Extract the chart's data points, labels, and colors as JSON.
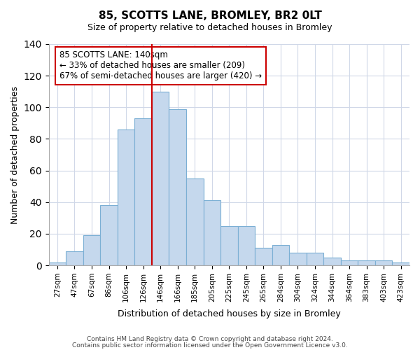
{
  "title": "85, SCOTTS LANE, BROMLEY, BR2 0LT",
  "subtitle": "Size of property relative to detached houses in Bromley",
  "xlabel": "Distribution of detached houses by size in Bromley",
  "ylabel": "Number of detached properties",
  "bar_labels": [
    "27sqm",
    "47sqm",
    "67sqm",
    "86sqm",
    "106sqm",
    "126sqm",
    "146sqm",
    "166sqm",
    "185sqm",
    "205sqm",
    "225sqm",
    "245sqm",
    "265sqm",
    "284sqm",
    "304sqm",
    "324sqm",
    "344sqm",
    "364sqm",
    "383sqm",
    "403sqm",
    "423sqm"
  ],
  "bar_values": [
    2,
    9,
    19,
    38,
    86,
    93,
    110,
    99,
    55,
    41,
    25,
    25,
    11,
    13,
    8,
    8,
    5,
    3,
    3,
    3,
    2
  ],
  "bar_color": "#c5d8ed",
  "bar_edge_color": "#7bafd4",
  "vline_x": 5.5,
  "vline_color": "#cc0000",
  "ylim": [
    0,
    140
  ],
  "yticks": [
    0,
    20,
    40,
    60,
    80,
    100,
    120,
    140
  ],
  "annotation_title": "85 SCOTTS LANE: 140sqm",
  "annotation_line1": "← 33% of detached houses are smaller (209)",
  "annotation_line2": "67% of semi-detached houses are larger (420) →",
  "annotation_box_color": "#ffffff",
  "annotation_box_edge": "#cc0000",
  "footer1": "Contains HM Land Registry data © Crown copyright and database right 2024.",
  "footer2": "Contains public sector information licensed under the Open Government Licence v3.0.",
  "background_color": "#ffffff",
  "grid_color": "#d0d8e8"
}
